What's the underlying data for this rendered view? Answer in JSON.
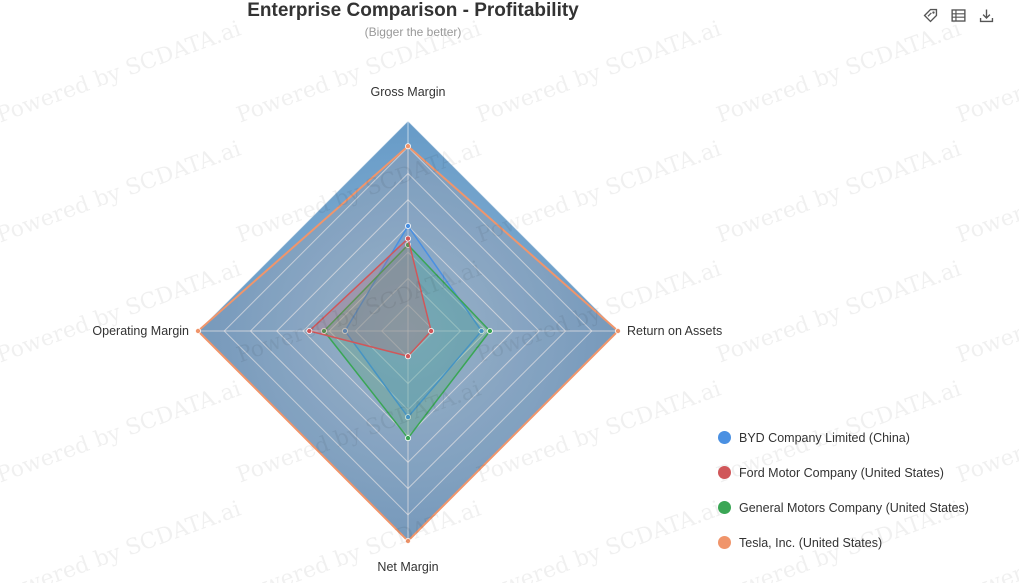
{
  "header": {
    "title": "Enterprise Comparison - Profitability",
    "subtitle": "(Bigger the better)"
  },
  "toolbar": {
    "icons": [
      "tag-icon",
      "data-view-icon",
      "download-icon"
    ]
  },
  "watermark": "Powered by SCDATA.ai",
  "colors": {
    "byd": "#4a90e2",
    "ford": "#d0575a",
    "gm": "#3aa655",
    "tesla": "#f0956b",
    "fill_outer": "#5b93c2"
  },
  "chart_data": {
    "type": "radar",
    "title": "Enterprise Comparison - Profitability",
    "subtitle": "(Bigger the better)",
    "indicators": [
      "Gross Margin",
      "Return on Assets",
      "Net Margin",
      "Operating Margin"
    ],
    "max": 1.0,
    "rings": 8,
    "legend_position": "bottom-right",
    "series": [
      {
        "name": "BYD Company Limited (China)",
        "color": "#4a90e2",
        "values": [
          0.5,
          0.35,
          0.41,
          0.3
        ]
      },
      {
        "name": "Ford Motor Company (United States)",
        "color": "#d0575a",
        "values": [
          0.44,
          0.11,
          0.12,
          0.47
        ]
      },
      {
        "name": "General Motors Company (United States)",
        "color": "#3aa655",
        "values": [
          0.41,
          0.39,
          0.51,
          0.4
        ]
      },
      {
        "name": "Tesla, Inc. (United States)",
        "color": "#f0956b",
        "values": [
          0.88,
          1.0,
          1.0,
          1.0
        ]
      }
    ]
  }
}
